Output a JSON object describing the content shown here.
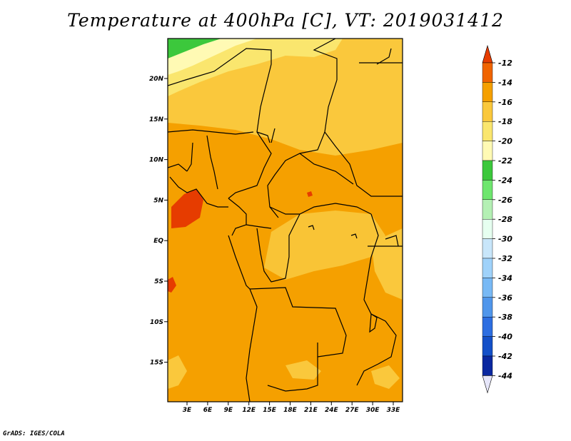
{
  "title": "Temperature at 400hPa [C], VT: 2019031412",
  "footer": "GrADS: IGES/COLA",
  "map": {
    "lat_labels": [
      "20N",
      "15N",
      "10N",
      "5N",
      "EQ",
      "5S",
      "10S",
      "15S"
    ],
    "lon_labels": [
      "3E",
      "6E",
      "9E",
      "12E",
      "15E",
      "18E",
      "21E",
      "24E",
      "27E",
      "30E",
      "33E"
    ]
  },
  "colorbar": {
    "labels": [
      "-12",
      "-14",
      "-16",
      "-18",
      "-20",
      "-22",
      "-24",
      "-26",
      "-28",
      "-30",
      "-32",
      "-34",
      "-36",
      "-38",
      "-40",
      "-42",
      "-44"
    ],
    "colors": [
      "#e63c00",
      "#f06400",
      "#f5a000",
      "#fac83c",
      "#fae66e",
      "#fffab4",
      "#3cc83c",
      "#6ee66e",
      "#b4f0b4",
      "#e6fff0",
      "#c8e6fa",
      "#9fd2fa",
      "#78b9f5",
      "#5096eb",
      "#2d6ee1",
      "#1450c8",
      "#0a28a0",
      "#000a64"
    ],
    "top_arrow_color": "#e63c00",
    "bottom_arrow_color": "#e6e6fa"
  }
}
